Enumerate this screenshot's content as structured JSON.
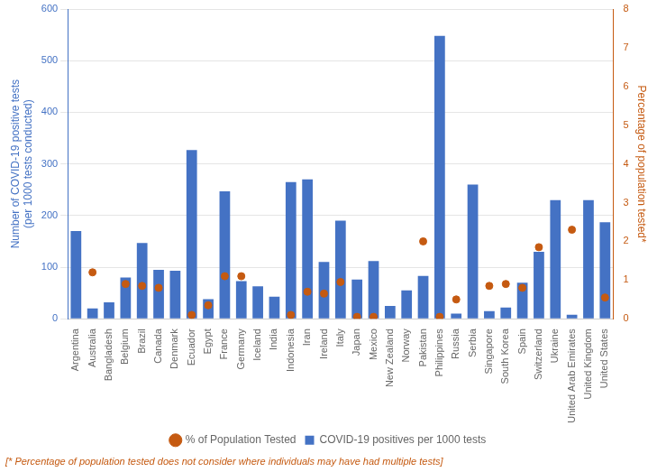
{
  "chart_data": {
    "type": "bar",
    "categories": [
      "Argentina",
      "Australia",
      "Bangladesh",
      "Belgium",
      "Brazil",
      "Canada",
      "Denmark",
      "Ecuador",
      "Egypt",
      "France",
      "Germany",
      "Iceland",
      "India",
      "Indonesia",
      "Iran",
      "Ireland",
      "Italy",
      "Japan",
      "Mexico",
      "New Zealand",
      "Norway",
      "Pakistan",
      "Philippines",
      "Russia",
      "Serbia",
      "Singapore",
      "South Korea",
      "Spain",
      "Switzerland",
      "Ukraine",
      "United Arab Emirates",
      "United Kingdom",
      "United States"
    ],
    "series": [
      {
        "name": "COVID-19 positives per 1000 tests",
        "type": "bar",
        "color": "#4472C4",
        "values": [
          170,
          20,
          32,
          80,
          147,
          95,
          93,
          327,
          38,
          247,
          73,
          63,
          43,
          265,
          270,
          110,
          190,
          76,
          112,
          25,
          55,
          83,
          548,
          10,
          260,
          15,
          22,
          70,
          130,
          230,
          8,
          230,
          187
        ]
      },
      {
        "name": "% of Population Tested",
        "type": "scatter",
        "axis": "y2",
        "marker": "circle",
        "color": "#C55A11",
        "values": [
          null,
          1.2,
          null,
          0.9,
          0.85,
          0.8,
          null,
          0.1,
          0.35,
          1.1,
          1.1,
          null,
          null,
          0.1,
          0.7,
          0.65,
          0.95,
          0.05,
          0.05,
          null,
          null,
          2.0,
          0.05,
          0.5,
          null,
          0.85,
          0.9,
          0.8,
          1.85,
          null,
          2.3,
          null,
          0.55
        ]
      }
    ],
    "ylabel": "Number of COVID-19 positive tests\n(per 1000 tests conducted)",
    "y2label": "Percentage of population tested*",
    "ylim": [
      0,
      600
    ],
    "yticks": [
      0,
      100,
      200,
      300,
      400,
      500,
      600
    ],
    "y2lim": [
      0,
      8
    ],
    "y2ticks": [
      0,
      1,
      2,
      3,
      4,
      5,
      6,
      7,
      8
    ],
    "grid": true,
    "legend": "bottom",
    "annotation": "[* Percentage of population tested does not consider where individuals may have had multiple tests]"
  }
}
